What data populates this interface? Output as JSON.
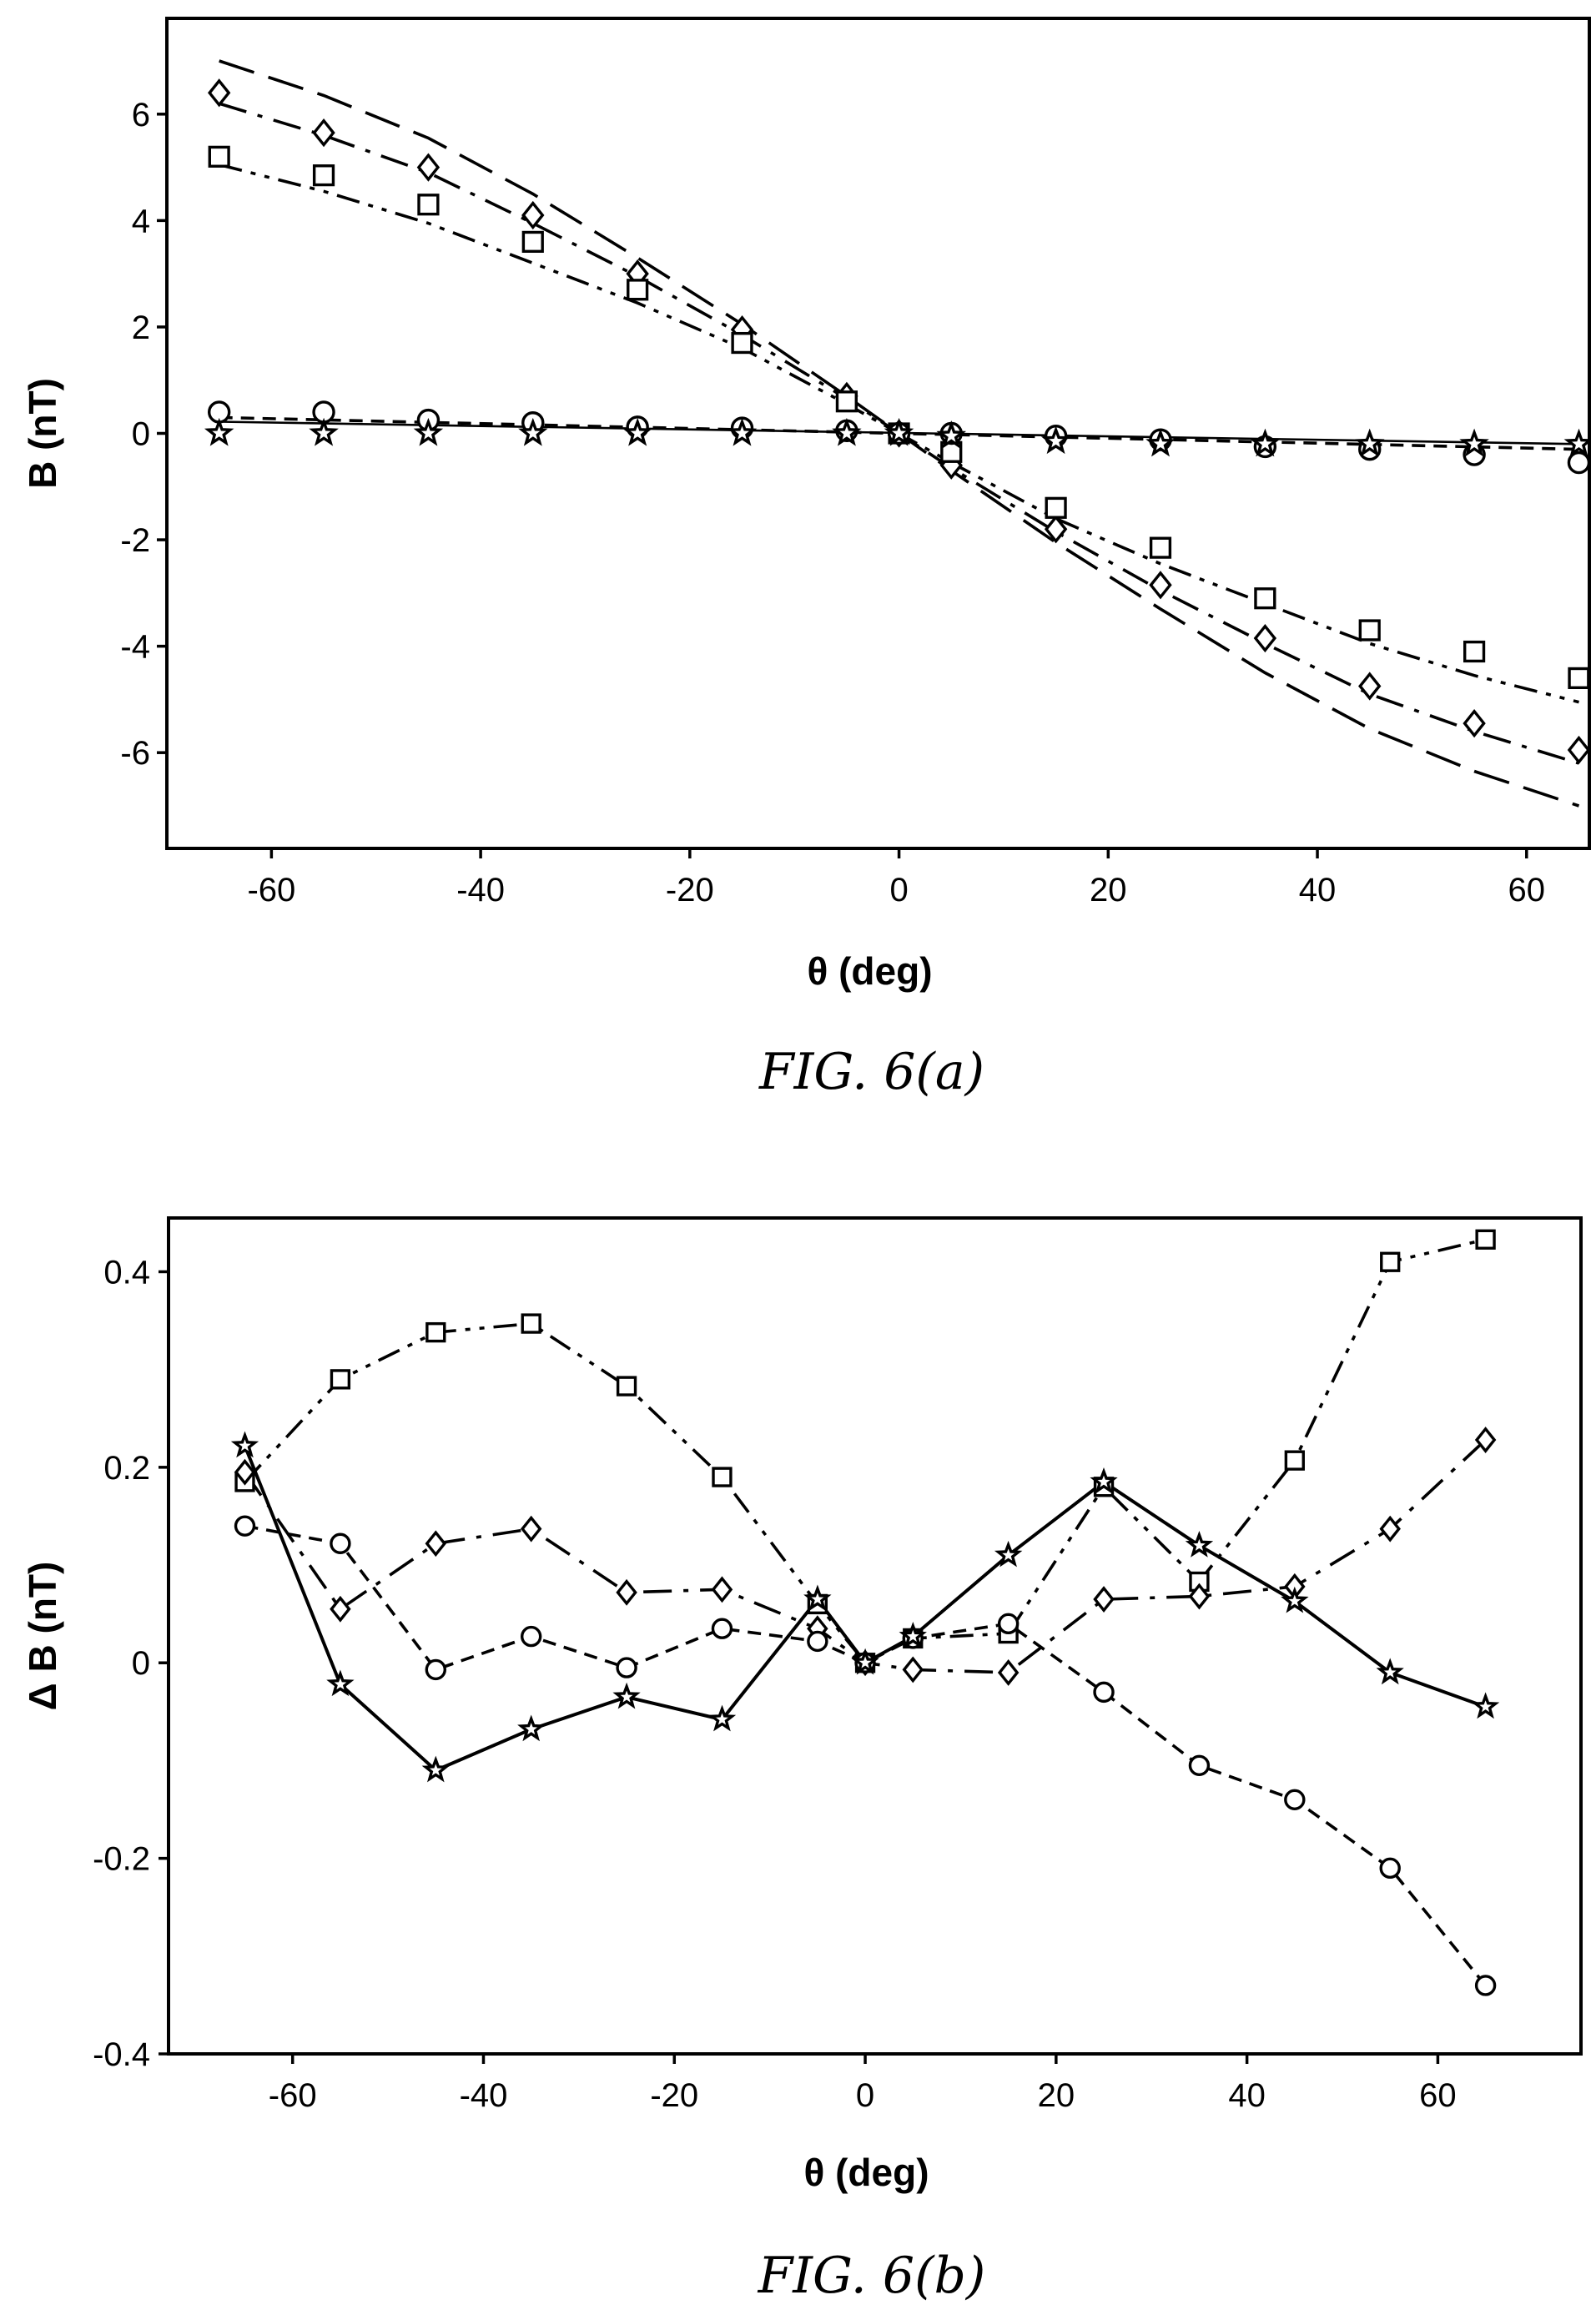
{
  "chart_data": [
    {
      "type": "scatter",
      "caption": "FIG. 6(a)",
      "xlabel": "θ (deg)",
      "ylabel": "B (nT)",
      "xlim": [
        -70,
        66
      ],
      "ylim": [
        -7.8,
        7.8
      ],
      "xticks": [
        -60,
        -40,
        -20,
        0,
        20,
        40,
        60
      ],
      "yticks": [
        -6,
        -4,
        -2,
        0,
        2,
        4,
        6
      ],
      "grid": false,
      "legend": "none",
      "curves": [
        {
          "style": "long-dash",
          "x": [
            -65,
            -55,
            -45,
            -35,
            -25,
            -15,
            -5,
            0,
            5,
            15,
            25,
            35,
            45,
            55,
            65
          ],
          "y": [
            7.0,
            6.35,
            5.55,
            4.5,
            3.3,
            2.05,
            0.7,
            0,
            -0.7,
            -2.05,
            -3.3,
            -4.5,
            -5.55,
            -6.35,
            -7.0
          ]
        },
        {
          "style": "dash-dot",
          "x": [
            -65,
            -55,
            -45,
            -35,
            -25,
            -15,
            -5,
            0,
            5,
            15,
            25,
            35,
            45,
            55,
            65
          ],
          "y": [
            6.2,
            5.6,
            4.9,
            3.95,
            2.95,
            1.85,
            0.65,
            0,
            -0.65,
            -1.85,
            -2.95,
            -3.95,
            -4.9,
            -5.6,
            -6.2
          ]
        },
        {
          "style": "dash-dot-dot",
          "x": [
            -65,
            -55,
            -45,
            -35,
            -25,
            -15,
            -5,
            0,
            5,
            15,
            25,
            35,
            45,
            55,
            65
          ],
          "y": [
            5.05,
            4.55,
            3.95,
            3.2,
            2.45,
            1.6,
            0.55,
            0,
            -0.55,
            -1.6,
            -2.45,
            -3.2,
            -3.95,
            -4.55,
            -5.05
          ]
        },
        {
          "style": "short-dash",
          "x": [
            -65,
            65
          ],
          "y": [
            0.3,
            -0.3
          ]
        },
        {
          "style": "solid",
          "x": [
            -65,
            65
          ],
          "y": [
            0.22,
            -0.2
          ]
        }
      ],
      "series": [
        {
          "marker": "diamond",
          "x": [
            -65,
            -55,
            -45,
            -35,
            -25,
            -15,
            -5,
            0,
            5,
            15,
            25,
            35,
            45,
            55,
            65
          ],
          "y": [
            6.4,
            5.65,
            5.0,
            4.1,
            3.0,
            1.95,
            0.7,
            0.0,
            -0.6,
            -1.8,
            -2.85,
            -3.85,
            -4.75,
            -5.45,
            -5.95
          ]
        },
        {
          "marker": "square",
          "x": [
            -65,
            -55,
            -45,
            -35,
            -25,
            -15,
            -5,
            0,
            5,
            15,
            25,
            35,
            45,
            55,
            65
          ],
          "y": [
            5.2,
            4.85,
            4.3,
            3.6,
            2.7,
            1.7,
            0.6,
            0.0,
            -0.35,
            -1.4,
            -2.15,
            -3.1,
            -3.7,
            -4.1,
            -4.6
          ]
        },
        {
          "marker": "circle",
          "x": [
            -65,
            -55,
            -45,
            -35,
            -25,
            -15,
            -5,
            0,
            5,
            15,
            25,
            35,
            45,
            55,
            65
          ],
          "y": [
            0.4,
            0.4,
            0.25,
            0.2,
            0.12,
            0.1,
            0.05,
            0.0,
            0.0,
            -0.05,
            -0.12,
            -0.25,
            -0.3,
            -0.4,
            -0.55
          ]
        },
        {
          "marker": "star",
          "x": [
            -65,
            -55,
            -45,
            -35,
            -25,
            -15,
            -5,
            0,
            5,
            15,
            25,
            35,
            45,
            55,
            65
          ],
          "y": [
            0.0,
            0.0,
            0.0,
            0.0,
            0.0,
            0.0,
            0.0,
            0.0,
            -0.05,
            -0.15,
            -0.2,
            -0.2,
            -0.2,
            -0.2,
            -0.2
          ]
        }
      ]
    },
    {
      "type": "line",
      "caption": "FIG. 6(b)",
      "xlabel": "θ (deg)",
      "ylabel": "Δ B (nT)",
      "xlim": [
        -73,
        75
      ],
      "ylim": [
        -0.4,
        0.455
      ],
      "xticks": [
        -60,
        -40,
        -20,
        0,
        20,
        40,
        60
      ],
      "yticks": [
        -0.4,
        -0.2,
        0,
        0.2,
        0.4
      ],
      "ytick_labels": [
        "-0.4",
        "-0.2",
        "0",
        "0.2",
        "0.4"
      ],
      "grid": false,
      "legend": "none",
      "series": [
        {
          "marker": "square",
          "line": "dash-dot-dot",
          "x": [
            -65,
            -55,
            -45,
            -35,
            -25,
            -15,
            -5,
            0,
            5,
            15,
            25,
            35,
            45,
            55,
            65
          ],
          "y": [
            0.185,
            0.29,
            0.338,
            0.347,
            0.283,
            0.19,
            0.06,
            0.0,
            0.025,
            0.03,
            0.18,
            0.083,
            0.207,
            0.41,
            0.433
          ]
        },
        {
          "marker": "diamond",
          "line": "dash-dot",
          "x": [
            -65,
            -55,
            -45,
            -35,
            -25,
            -15,
            -5,
            0,
            5,
            15,
            25,
            35,
            45,
            55,
            65
          ],
          "y": [
            0.195,
            0.055,
            0.122,
            0.137,
            0.072,
            0.075,
            0.035,
            0.0,
            -0.007,
            -0.01,
            0.065,
            0.068,
            0.078,
            0.137,
            0.228
          ]
        },
        {
          "marker": "circle",
          "line": "short-dash",
          "x": [
            -65,
            -55,
            -45,
            -35,
            -25,
            -15,
            -5,
            0,
            5,
            15,
            25,
            35,
            45,
            55,
            65
          ],
          "y": [
            0.14,
            0.122,
            -0.007,
            0.027,
            -0.005,
            0.035,
            0.022,
            0.0,
            0.025,
            0.04,
            -0.03,
            -0.105,
            -0.14,
            -0.21,
            -0.33
          ]
        },
        {
          "marker": "star",
          "line": "solid",
          "x": [
            -65,
            -55,
            -45,
            -35,
            -25,
            -15,
            -5,
            0,
            5,
            15,
            25,
            35,
            45,
            55,
            65
          ],
          "y": [
            0.222,
            -0.022,
            -0.11,
            -0.068,
            -0.035,
            -0.058,
            0.065,
            0.0,
            0.027,
            0.11,
            0.185,
            0.12,
            0.063,
            -0.01,
            -0.045
          ]
        }
      ]
    }
  ]
}
